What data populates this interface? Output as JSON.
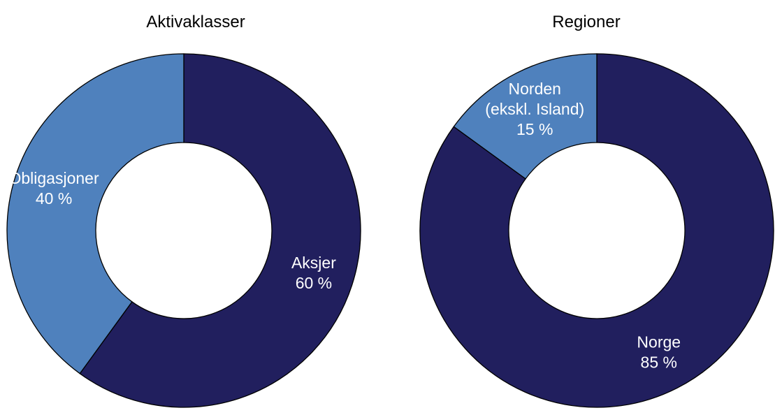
{
  "chart_data": [
    {
      "type": "pie",
      "title": "Aktivaklasser",
      "slices": [
        {
          "label_lines": [
            "Aksjer"
          ],
          "value_text": "60 %",
          "value": 60,
          "color": "#211F5E"
        },
        {
          "label_lines": [
            "Obligasjoner"
          ],
          "value_text": "40 %",
          "value": 40,
          "color": "#4F81BD"
        }
      ]
    },
    {
      "type": "pie",
      "title": "Regioner",
      "slices": [
        {
          "label_lines": [
            "Norge"
          ],
          "value_text": "85 %",
          "value": 85,
          "color": "#211F5E"
        },
        {
          "label_lines": [
            "Norden",
            "(ekskl. Island)"
          ],
          "value_text": "15 %",
          "value": 15,
          "color": "#4F81BD"
        }
      ]
    }
  ]
}
